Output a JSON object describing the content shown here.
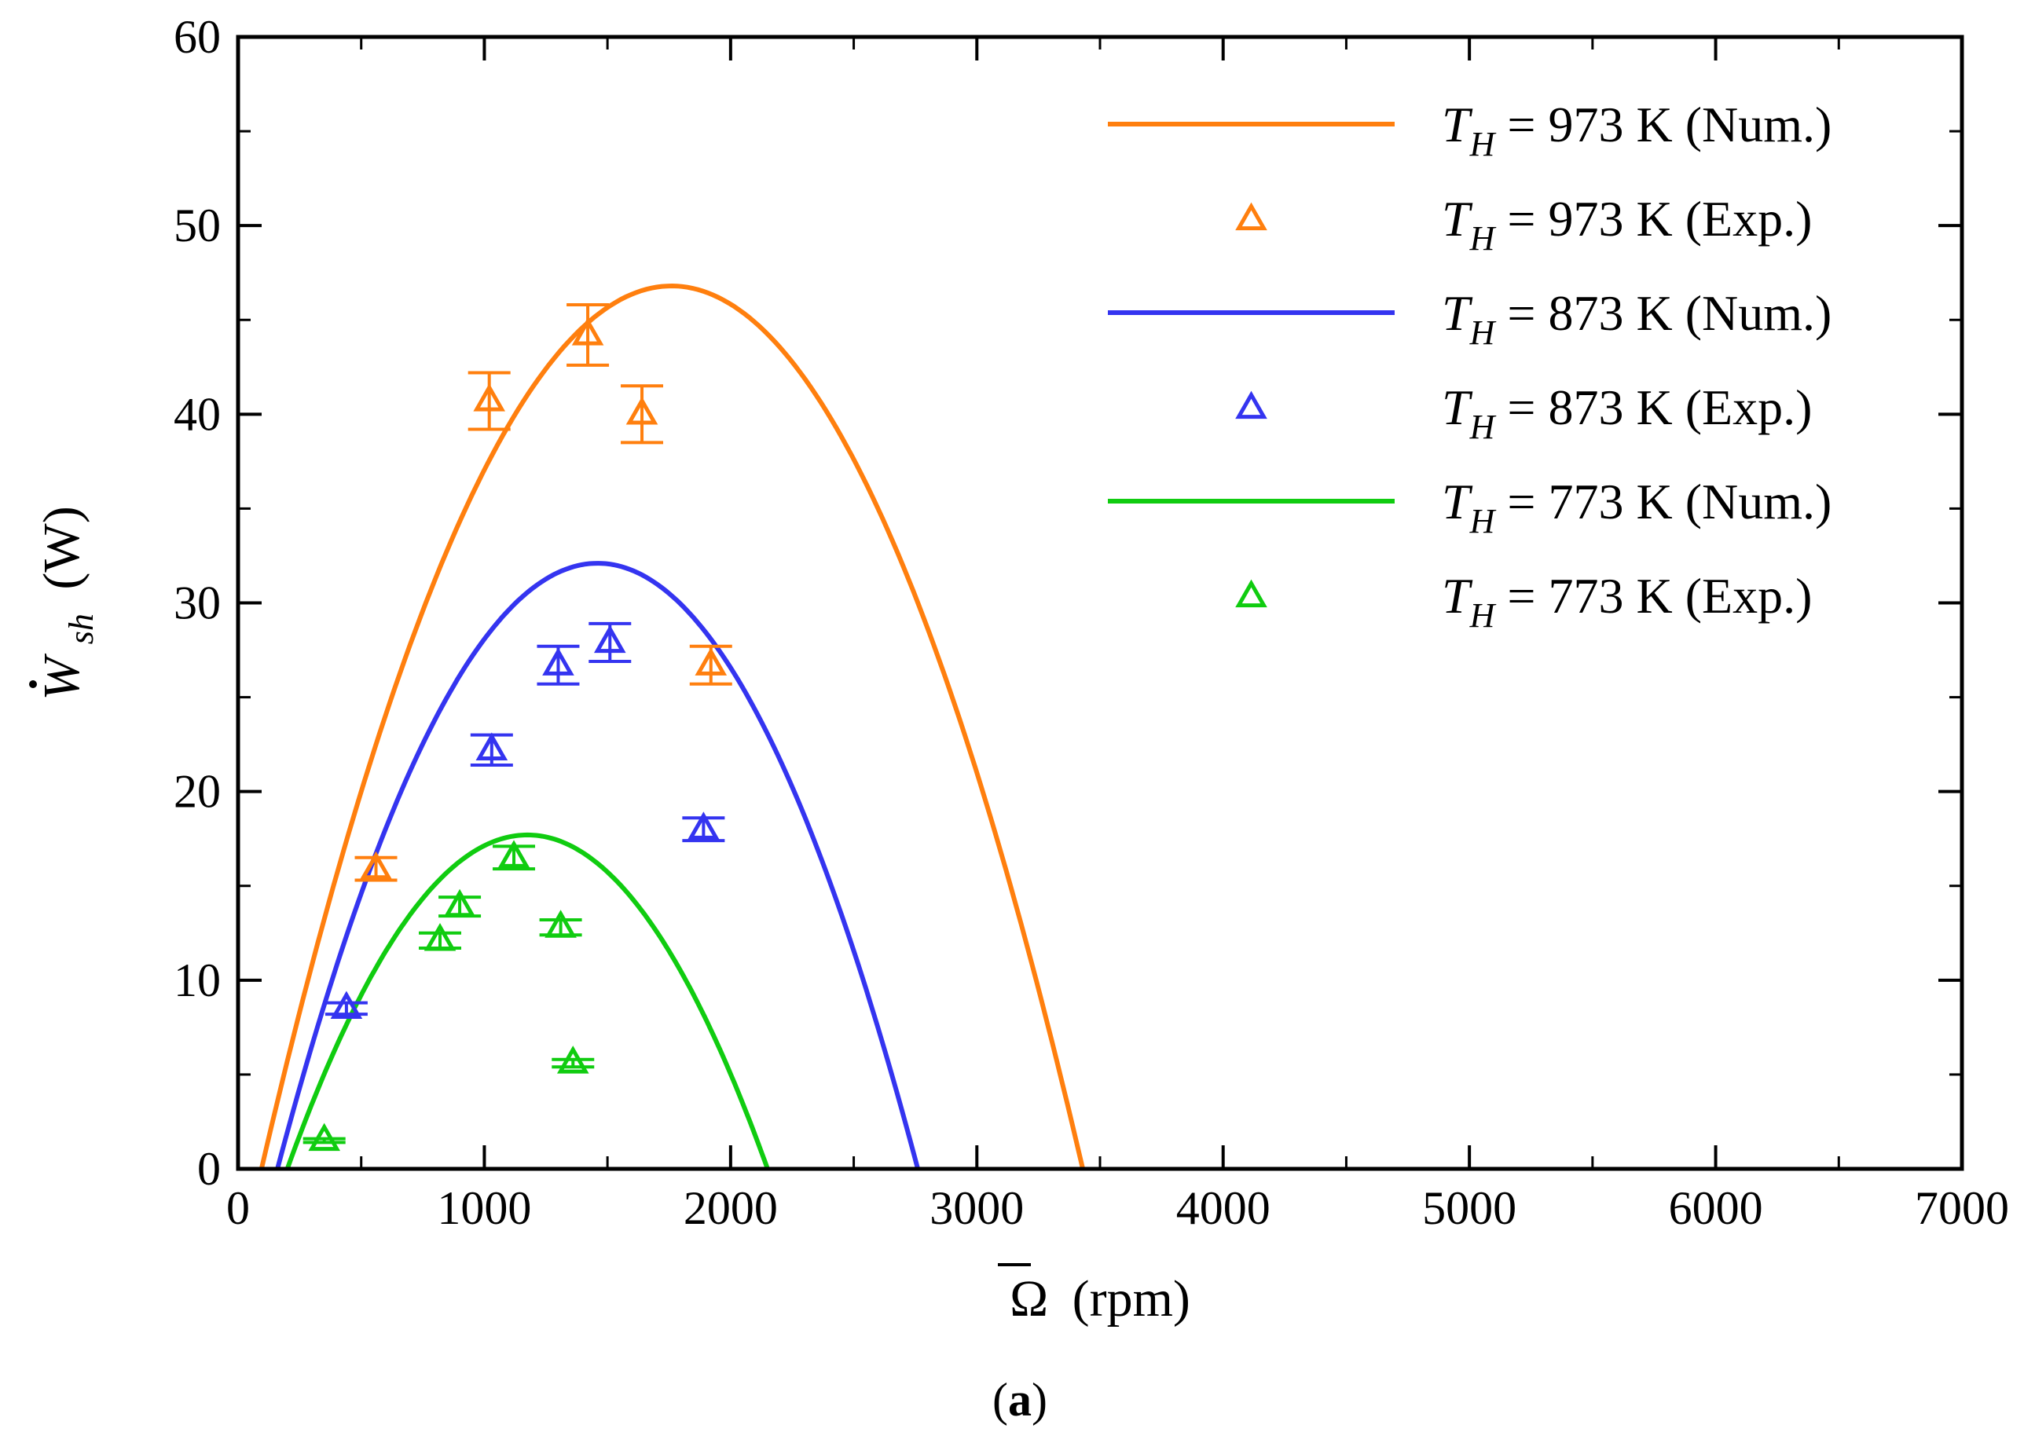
{
  "caption": {
    "open": "(",
    "letter": "a",
    "close": ")"
  },
  "chart_data": {
    "type": "line",
    "xlabel": {
      "symbol": "Ω",
      "unit": "(rpm)"
    },
    "ylabel": {
      "base": "W",
      "sub": "sh",
      "unit": "(W)"
    },
    "xlim": [
      0,
      7000
    ],
    "ylim": [
      0,
      60
    ],
    "xticks": [
      0,
      1000,
      2000,
      3000,
      4000,
      5000,
      6000,
      7000
    ],
    "yticks": [
      0,
      10,
      20,
      30,
      40,
      50,
      60
    ],
    "grid": false,
    "legend_position": "top-right",
    "series": [
      {
        "name": "T_H = 973 K (Num.)",
        "kind": "line",
        "color": "#ff7f0e",
        "label": {
          "sym": "T",
          "sub": "H",
          "text": " = 973 K (Num.)"
        },
        "curve": {
          "x0": 95,
          "x1": 3430,
          "xpeak": 1760,
          "ypeak": 46.8
        }
      },
      {
        "name": "T_H = 973 K (Exp.)",
        "kind": "marker",
        "color": "#ff7f0e",
        "label": {
          "sym": "T",
          "sub": "H",
          "text": " = 973 K (Exp.)"
        },
        "points": [
          {
            "x": 560,
            "y": 15.9,
            "err": 0.6
          },
          {
            "x": 1020,
            "y": 40.7,
            "err": 1.5
          },
          {
            "x": 1420,
            "y": 44.2,
            "err": 1.6
          },
          {
            "x": 1640,
            "y": 40.0,
            "err": 1.5
          },
          {
            "x": 1920,
            "y": 26.7,
            "err": 1.0
          }
        ]
      },
      {
        "name": "T_H = 873 K (Num.)",
        "kind": "line",
        "color": "#3434f0",
        "label": {
          "sym": "T",
          "sub": "H",
          "text": " = 873 K (Num.)"
        },
        "curve": {
          "x0": 160,
          "x1": 2760,
          "xpeak": 1460,
          "ypeak": 32.1
        }
      },
      {
        "name": "T_H = 873 K (Exp.)",
        "kind": "marker",
        "color": "#3434f0",
        "label": {
          "sym": "T",
          "sub": "H",
          "text": " = 873 K (Exp.)"
        },
        "points": [
          {
            "x": 440,
            "y": 8.5,
            "err": 0.3
          },
          {
            "x": 1030,
            "y": 22.2,
            "err": 0.8
          },
          {
            "x": 1300,
            "y": 26.7,
            "err": 1.0
          },
          {
            "x": 1510,
            "y": 27.9,
            "err": 1.0
          },
          {
            "x": 1890,
            "y": 18.0,
            "err": 0.6
          }
        ]
      },
      {
        "name": "T_H = 773 K (Num.)",
        "kind": "line",
        "color": "#10cc10",
        "label": {
          "sym": "T",
          "sub": "H",
          "text": " = 773 K (Num.)"
        },
        "curve": {
          "x0": 200,
          "x1": 2150,
          "xpeak": 1175,
          "ypeak": 17.7
        }
      },
      {
        "name": "T_H = 773 K (Exp.)",
        "kind": "marker",
        "color": "#10cc10",
        "label": {
          "sym": "T",
          "sub": "H",
          "text": " = 773 K (Exp.)"
        },
        "points": [
          {
            "x": 350,
            "y": 1.5,
            "err": 0.1
          },
          {
            "x": 820,
            "y": 12.1,
            "err": 0.4
          },
          {
            "x": 900,
            "y": 13.9,
            "err": 0.5
          },
          {
            "x": 1120,
            "y": 16.5,
            "err": 0.6
          },
          {
            "x": 1310,
            "y": 12.8,
            "err": 0.4
          },
          {
            "x": 1360,
            "y": 5.6,
            "err": 0.2
          }
        ]
      }
    ]
  }
}
